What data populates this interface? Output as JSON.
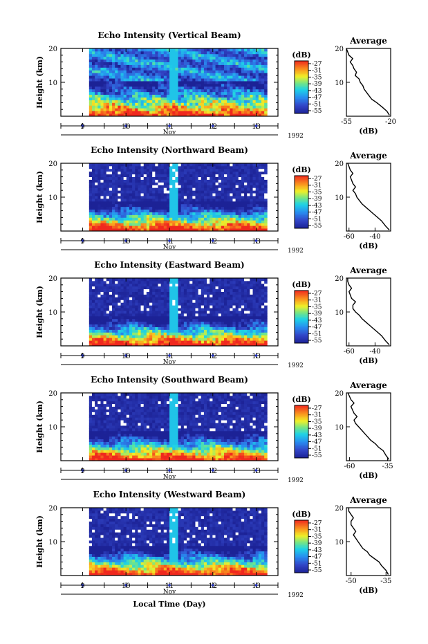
{
  "figure": {
    "xaxis_label": "Local Time (Day)"
  },
  "chart_data": [
    {
      "type": "heatmap",
      "title": "Echo Intensity (Vertical Beam)",
      "ylabel": "Height (km)",
      "yticks": [
        10,
        20
      ],
      "ylim": [
        0,
        20
      ],
      "xticks": [
        "9",
        "10",
        "11",
        "12",
        "13"
      ],
      "xlim_day": [
        8.5,
        13.5
      ],
      "data_start_day": 9.15,
      "data_end_day": 13.25,
      "month_label": "Nov",
      "year_label": "1992",
      "colorbar_unit": "(dB)",
      "colorbar_ticks": [
        -27,
        -31,
        -35,
        -39,
        -43,
        -47,
        -51,
        -55
      ],
      "profile": {
        "title": "Average",
        "xlabel": "(dB)",
        "xticks": [
          "-55",
          "-20"
        ],
        "xlim": [
          -55,
          -20
        ],
        "points": [
          [
            -21,
            0.3
          ],
          [
            -23,
            1.5
          ],
          [
            -27,
            2.8
          ],
          [
            -31,
            4
          ],
          [
            -35,
            5
          ],
          [
            -38,
            6.5
          ],
          [
            -41,
            8
          ],
          [
            -42,
            9
          ],
          [
            -44,
            10
          ],
          [
            -45,
            11
          ],
          [
            -48,
            12
          ],
          [
            -47,
            13
          ],
          [
            -49,
            14
          ],
          [
            -50,
            15
          ],
          [
            -52,
            16
          ],
          [
            -50,
            17
          ],
          [
            -53,
            18
          ],
          [
            -54,
            19
          ],
          [
            -55,
            20
          ]
        ]
      }
    },
    {
      "type": "heatmap",
      "title": "Echo Intensity (Northward Beam)",
      "ylabel": "Height (km)",
      "yticks": [
        10,
        20
      ],
      "ylim": [
        0,
        20
      ],
      "xticks": [
        "9",
        "10",
        "11",
        "12",
        "13"
      ],
      "xlim_day": [
        8.5,
        13.5
      ],
      "data_start_day": 9.15,
      "data_end_day": 13.25,
      "month_label": "Nov",
      "year_label": "1992",
      "colorbar_unit": "(dB)",
      "colorbar_ticks": [
        -27,
        -31,
        -35,
        -39,
        -43,
        -47,
        -51,
        -55
      ],
      "profile": {
        "title": "Average",
        "xlabel": "(dB)",
        "xticks": [
          "-60",
          "-40"
        ],
        "xlim": [
          -62,
          -28
        ],
        "points": [
          [
            -29,
            0.3
          ],
          [
            -32,
            1.5
          ],
          [
            -35,
            3
          ],
          [
            -38,
            4
          ],
          [
            -41,
            5
          ],
          [
            -44,
            6
          ],
          [
            -47,
            7
          ],
          [
            -50,
            8
          ],
          [
            -52,
            9
          ],
          [
            -54,
            10
          ],
          [
            -55,
            11
          ],
          [
            -57,
            12
          ],
          [
            -55,
            13
          ],
          [
            -57,
            14
          ],
          [
            -58,
            15
          ],
          [
            -59,
            16
          ],
          [
            -57,
            17
          ],
          [
            -59,
            18
          ],
          [
            -60,
            19
          ],
          [
            -61,
            20
          ]
        ]
      }
    },
    {
      "type": "heatmap",
      "title": "Echo Intensity (Eastward Beam)",
      "ylabel": "Height (km)",
      "yticks": [
        10,
        20
      ],
      "ylim": [
        0,
        20
      ],
      "xticks": [
        "9",
        "10",
        "11",
        "12",
        "13"
      ],
      "xlim_day": [
        8.5,
        13.5
      ],
      "data_start_day": 9.15,
      "data_end_day": 13.25,
      "month_label": "Nov",
      "year_label": "1992",
      "colorbar_unit": "(dB)",
      "colorbar_ticks": [
        -27,
        -31,
        -35,
        -39,
        -43,
        -47,
        -51,
        -55
      ],
      "profile": {
        "title": "Average",
        "xlabel": "(dB)",
        "xticks": [
          "-60",
          "-40"
        ],
        "xlim": [
          -62,
          -28
        ],
        "points": [
          [
            -29,
            0.3
          ],
          [
            -32,
            1.5
          ],
          [
            -35,
            3
          ],
          [
            -38,
            4
          ],
          [
            -41,
            5
          ],
          [
            -44,
            6
          ],
          [
            -47,
            7
          ],
          [
            -50,
            8
          ],
          [
            -52,
            9
          ],
          [
            -55,
            10
          ],
          [
            -57,
            11
          ],
          [
            -57,
            12
          ],
          [
            -55,
            13
          ],
          [
            -58,
            14
          ],
          [
            -59,
            15
          ],
          [
            -60,
            16
          ],
          [
            -58,
            17
          ],
          [
            -60,
            18
          ],
          [
            -61,
            19
          ],
          [
            -61,
            20
          ]
        ]
      }
    },
    {
      "type": "heatmap",
      "title": "Echo Intensity (Southward Beam)",
      "ylabel": "Height (km)",
      "yticks": [
        10,
        20
      ],
      "ylim": [
        0,
        20
      ],
      "xticks": [
        "9",
        "10",
        "11",
        "12",
        "13"
      ],
      "xlim_day": [
        8.5,
        13.5
      ],
      "data_start_day": 9.15,
      "data_end_day": 13.25,
      "month_label": "Nov",
      "year_label": "1992",
      "colorbar_unit": "(dB)",
      "colorbar_ticks": [
        -27,
        -31,
        -35,
        -39,
        -43,
        -47,
        -51,
        -55
      ],
      "profile": {
        "title": "Average",
        "xlabel": "(dB)",
        "xticks": [
          "-60",
          "-35"
        ],
        "xlim": [
          -62,
          -33
        ],
        "points": [
          [
            -34,
            0.3
          ],
          [
            -36,
            1.5
          ],
          [
            -38,
            3
          ],
          [
            -41,
            4
          ],
          [
            -43,
            5
          ],
          [
            -46,
            6
          ],
          [
            -48,
            7
          ],
          [
            -50,
            8
          ],
          [
            -52,
            9
          ],
          [
            -54,
            10
          ],
          [
            -56,
            11
          ],
          [
            -57,
            12
          ],
          [
            -55,
            13
          ],
          [
            -57,
            14
          ],
          [
            -58,
            15
          ],
          [
            -59,
            16
          ],
          [
            -57,
            17
          ],
          [
            -59,
            18
          ],
          [
            -60,
            19
          ],
          [
            -61,
            20
          ]
        ]
      }
    },
    {
      "type": "heatmap",
      "title": "Echo Intensity (Westward Beam)",
      "ylabel": "Height (km)",
      "yticks": [
        10,
        20
      ],
      "ylim": [
        0,
        20
      ],
      "xticks": [
        "9",
        "10",
        "11",
        "12",
        "13"
      ],
      "xlim_day": [
        8.5,
        13.5
      ],
      "data_start_day": 9.15,
      "data_end_day": 13.25,
      "month_label": "Nov",
      "year_label": "1992",
      "colorbar_unit": "(dB)",
      "colorbar_ticks": [
        -27,
        -31,
        -35,
        -39,
        -43,
        -47,
        -51,
        -55
      ],
      "profile": {
        "title": "Average",
        "xlabel": "(dB)",
        "xticks": [
          "-50",
          "-35"
        ],
        "xlim": [
          -52,
          -33
        ],
        "points": [
          [
            -34,
            0.3
          ],
          [
            -35,
            1.5
          ],
          [
            -37,
            3
          ],
          [
            -38,
            4
          ],
          [
            -40,
            5
          ],
          [
            -42,
            6
          ],
          [
            -43,
            7
          ],
          [
            -45,
            8
          ],
          [
            -46,
            9
          ],
          [
            -47,
            10
          ],
          [
            -48,
            11
          ],
          [
            -49,
            12
          ],
          [
            -48,
            13
          ],
          [
            -49,
            14
          ],
          [
            -50,
            15
          ],
          [
            -50,
            16
          ],
          [
            -49,
            17
          ],
          [
            -50,
            18
          ],
          [
            -51,
            19
          ],
          [
            -51,
            20
          ]
        ]
      }
    }
  ]
}
